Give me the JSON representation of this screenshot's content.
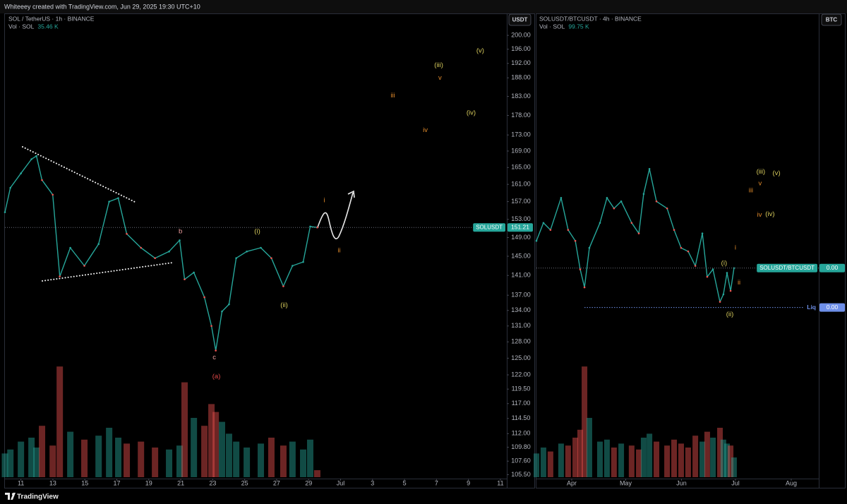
{
  "header": {
    "text": "Whiteeey created with TradingView.com, Jun 29, 2025 19:30 UTC+10"
  },
  "chart_data": [
    {
      "type": "line",
      "title": "SOL / TetherUS · 1h · BINANCE",
      "currency_button": "USDT",
      "symbol": "SOLUSDT",
      "color": "#26a69a",
      "up_color": "#26a69a",
      "down_color": "#ef5350",
      "log": true,
      "x": [
        10,
        10.34,
        11,
        11.66,
        11.97,
        12.32,
        12.99,
        13.43,
        14.09,
        14.97,
        15.86,
        16.52,
        17.09,
        17.62,
        18.51,
        19.39,
        20.27,
        20.93,
        21.24,
        21.82,
        22.48,
        22.92,
        23.19,
        23.58,
        24.02,
        24.47,
        25.13,
        26.01,
        26.67,
        27.42,
        27.99,
        28.66,
        29.1,
        29.54
      ],
      "values": [
        154.6,
        160.2,
        163.6,
        167,
        167.8,
        162,
        158.6,
        140.8,
        146.8,
        143,
        147.6,
        157,
        157.8,
        149.8,
        146.8,
        144.6,
        146,
        148.4,
        140.2,
        141.6,
        136.6,
        131,
        126.4,
        133.8,
        135.2,
        144.6,
        146,
        146.8,
        144.6,
        138.8,
        143,
        143.8,
        151.4,
        151.21
      ],
      "volume": {
        "name": "Vol · SOL",
        "label": "35.46 K",
        "values": [
          120,
          140,
          180,
          200,
          150,
          260,
          160,
          560,
          230,
          190,
          210,
          250,
          200,
          170,
          180,
          150,
          140,
          160,
          480,
          300,
          260,
          370,
          330,
          280,
          220,
          180,
          150,
          170,
          200,
          160,
          180,
          140,
          190,
          35.46
        ]
      },
      "last_price": 151.21,
      "xlim": [
        10,
        41.4
      ],
      "xticks": [
        11,
        13,
        15,
        17,
        19,
        21,
        23,
        25,
        27,
        29,
        {
          "value": 31,
          "label": "Jul"
        },
        {
          "value": 33,
          "label": "3"
        },
        {
          "value": 35,
          "label": "5"
        },
        {
          "value": 37,
          "label": "7"
        },
        {
          "value": 39,
          "label": "9"
        },
        {
          "value": 41,
          "label": "11"
        }
      ],
      "ylim": [
        104.9,
        202.5
      ],
      "yticks": [
        {
          "value": 200,
          "label": "200.00"
        },
        {
          "value": 196,
          "label": "196.00"
        },
        {
          "value": 192,
          "label": "192.00"
        },
        {
          "value": 188,
          "label": "188.00"
        },
        {
          "value": 183,
          "label": "183.00"
        },
        {
          "value": 178,
          "label": "178.00"
        },
        {
          "value": 173,
          "label": "173.00"
        },
        {
          "value": 169,
          "label": "169.00"
        },
        {
          "value": 165,
          "label": "165.00"
        },
        {
          "value": 161,
          "label": "161.00"
        },
        {
          "value": 157,
          "label": "157.00"
        },
        {
          "value": 153,
          "label": "153.00"
        },
        {
          "value": 149,
          "label": "149.00"
        },
        {
          "value": 145,
          "label": "145.00"
        },
        {
          "value": 141,
          "label": "141.00"
        },
        {
          "value": 137,
          "label": "137.00"
        },
        {
          "value": 134,
          "label": "134.00"
        },
        {
          "value": 131,
          "label": "131.00"
        },
        {
          "value": 128,
          "label": "128.00"
        },
        {
          "value": 125,
          "label": "125.00"
        },
        {
          "value": 122,
          "label": "122.00"
        },
        {
          "value": 119.5,
          "label": "119.50"
        },
        {
          "value": 117,
          "label": "117.00"
        },
        {
          "value": 114.5,
          "label": "114.50"
        },
        {
          "value": 112,
          "label": "112.00"
        },
        {
          "value": 109.8,
          "label": "109.80"
        },
        {
          "value": 107.6,
          "label": "107.60"
        },
        {
          "value": 105.5,
          "label": "105.50"
        }
      ],
      "annotations": [
        {
          "text": "(v)",
          "x": 39.74,
          "y": 195.5,
          "color": "#d8cc5c"
        },
        {
          "text": "(iii)",
          "x": 37.14,
          "y": 191.5,
          "color": "#d8cc5c"
        },
        {
          "text": "v",
          "x": 37.22,
          "y": 188,
          "color": "#e08a2b"
        },
        {
          "text": "iii",
          "x": 34.27,
          "y": 183.2,
          "color": "#e08a2b"
        },
        {
          "text": "(iv)",
          "x": 39.17,
          "y": 178.6,
          "color": "#d8cc5c"
        },
        {
          "text": "iv",
          "x": 36.3,
          "y": 174.2,
          "color": "#e08a2b"
        },
        {
          "text": "b",
          "x": 20.98,
          "y": 150.3,
          "color": "#f0a0a0"
        },
        {
          "text": "(i)",
          "x": 25.79,
          "y": 150.3,
          "color": "#d8cc5c"
        },
        {
          "text": "i",
          "x": 29.98,
          "y": 157.3,
          "color": "#e08a2b"
        },
        {
          "text": "ii",
          "x": 30.91,
          "y": 146.2,
          "color": "#e08a2b"
        },
        {
          "text": "(ii)",
          "x": 27.47,
          "y": 135,
          "color": "#d8cc5c"
        },
        {
          "text": "c",
          "x": 23.1,
          "y": 125.1,
          "color": "#f0a0a0"
        },
        {
          "text": "(a)",
          "x": 23.23,
          "y": 121.7,
          "color": "#e04848"
        }
      ]
    },
    {
      "type": "line",
      "title": "SOLUSDT/BTCUSDT · 4h · BINANCE",
      "currency_button": "BTC",
      "symbol": "SOLUSDT/BTCUSDT",
      "color": "#26a69a",
      "up_color": "#26a69a",
      "down_color": "#ef5350",
      "log": false,
      "x": [
        71.4,
        75.3,
        79.2,
        85.1,
        89,
        93,
        95.7,
        98.1,
        100.8,
        106.7,
        110.6,
        114.5,
        118.5,
        124.3,
        128.3,
        131,
        134.2,
        138.1,
        144,
        147.9,
        151.8,
        155.7,
        159.7,
        163.6,
        166.3,
        169.5,
        173.4,
        175.3,
        177.3,
        179.3,
        181.2
      ],
      "values": [
        0.001472,
        0.001513,
        0.001497,
        0.00157,
        0.001497,
        0.001472,
        0.001407,
        0.001366,
        0.001456,
        0.001513,
        0.00157,
        0.001546,
        0.001562,
        0.001513,
        0.001489,
        0.001579,
        0.001636,
        0.001562,
        0.001546,
        0.001497,
        0.001456,
        0.001448,
        0.001415,
        0.001489,
        0.00139,
        0.001407,
        0.001333,
        0.00135,
        0.001399,
        0.001358,
        0.00141
      ],
      "volume": {
        "name": "Vol · SOL",
        "label": "99.75 K",
        "values": [
          120,
          150,
          130,
          170,
          160,
          200,
          240,
          560,
          300,
          180,
          190,
          150,
          170,
          160,
          140,
          200,
          220,
          180,
          160,
          190,
          170,
          150,
          210,
          180,
          230,
          200,
          250,
          190,
          170,
          160,
          99.75
        ]
      },
      "last_price": {
        "value": 0.00141,
        "label": "0.00"
      },
      "levels": [
        {
          "name": "Liq",
          "value": 0.00132,
          "label": "0.00",
          "color": "#6e8fe8"
        }
      ],
      "xlim": [
        71.4,
        228.3
      ],
      "xticks": [
        {
          "value": 91,
          "label": "Apr"
        },
        {
          "value": 121,
          "label": "May"
        },
        {
          "value": 152,
          "label": "Jun"
        },
        {
          "value": 182,
          "label": "Jul"
        },
        {
          "value": 213,
          "label": "Aug"
        }
      ],
      "ylim": [
        0.00093,
        0.00196
      ],
      "annotations": [
        {
          "text": "(iii)",
          "x": 196.1,
          "y": 0.001629,
          "color": "#d8cc5c"
        },
        {
          "text": "(v)",
          "x": 204.8,
          "y": 0.001626,
          "color": "#d8cc5c"
        },
        {
          "text": "v",
          "x": 195.7,
          "y": 0.001603,
          "color": "#e08a2b"
        },
        {
          "text": "iii",
          "x": 190.6,
          "y": 0.001587,
          "color": "#e08a2b"
        },
        {
          "text": "iv",
          "x": 195.4,
          "y": 0.001531,
          "color": "#e08a2b"
        },
        {
          "text": "(iv)",
          "x": 201.2,
          "y": 0.001533,
          "color": "#d8cc5c"
        },
        {
          "text": "i",
          "x": 182,
          "y": 0.001456,
          "color": "#e08a2b"
        },
        {
          "text": "(i)",
          "x": 175.7,
          "y": 0.001421,
          "color": "#d8cc5c"
        },
        {
          "text": "ii",
          "x": 184,
          "y": 0.001377,
          "color": "#e08a2b"
        },
        {
          "text": "(ii)",
          "x": 178.9,
          "y": 0.001304,
          "color": "#d8cc5c"
        }
      ]
    }
  ],
  "footer": {
    "brand": "TradingView"
  }
}
